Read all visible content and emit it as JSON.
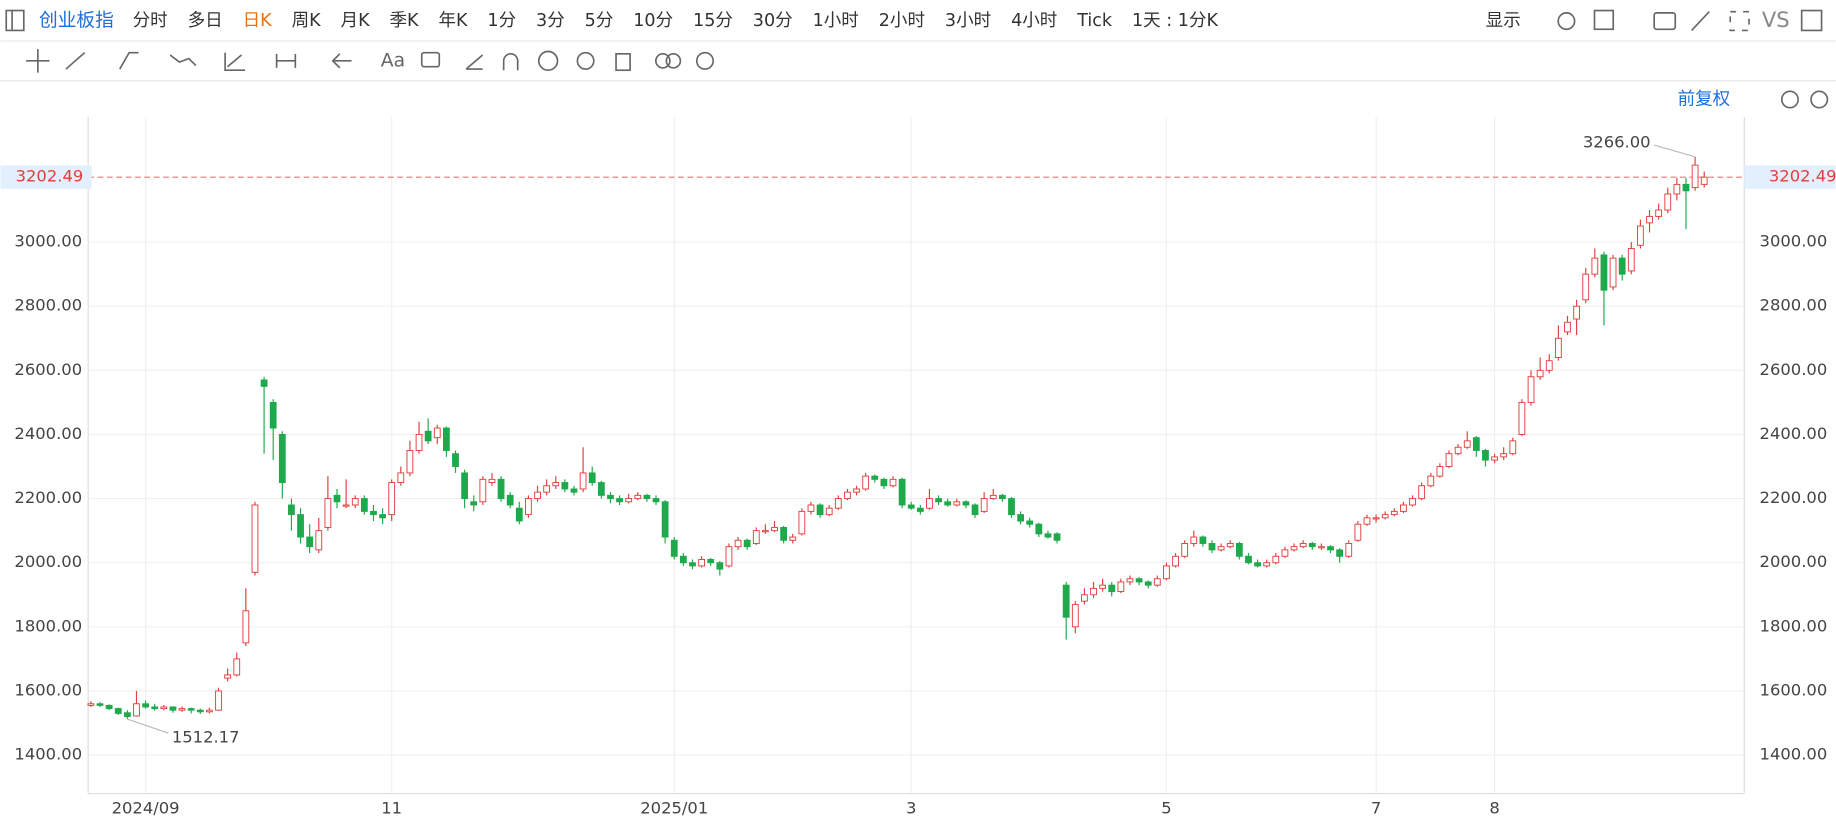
{
  "toolbar": {
    "title": "创业板指",
    "periods": [
      "分时",
      "多日",
      "日K",
      "周K",
      "月K",
      "季K",
      "年K",
      "1分",
      "3分",
      "5分",
      "10分",
      "15分",
      "30分",
      "1小时",
      "2小时",
      "3小时",
      "4小时",
      "Tick",
      "1天 : 1分K"
    ],
    "active_period": "日K",
    "display": "显示",
    "compare": "VS",
    "text_tool": "Aa",
    "adjust": "前复权"
  },
  "chart_data": {
    "type": "candlestick",
    "up_color": "#e0403c",
    "down_color": "#1ea94c",
    "candles": [
      [
        1555,
        1568,
        1550,
        1560
      ],
      [
        1560,
        1565,
        1550,
        1555
      ],
      [
        1555,
        1558,
        1540,
        1545
      ],
      [
        1545,
        1548,
        1525,
        1530
      ],
      [
        1532,
        1540,
        1512.17,
        1520
      ],
      [
        1522,
        1600,
        1520,
        1560
      ],
      [
        1560,
        1570,
        1545,
        1550
      ],
      [
        1550,
        1560,
        1538,
        1545
      ],
      [
        1545,
        1556,
        1540,
        1550
      ],
      [
        1550,
        1552,
        1532,
        1540
      ],
      [
        1540,
        1552,
        1535,
        1545
      ],
      [
        1545,
        1548,
        1530,
        1540
      ],
      [
        1540,
        1545,
        1528,
        1535
      ],
      [
        1535,
        1548,
        1530,
        1540
      ],
      [
        1540,
        1610,
        1538,
        1600
      ],
      [
        1640,
        1670,
        1630,
        1650
      ],
      [
        1650,
        1720,
        1645,
        1700
      ],
      [
        1750,
        1920,
        1740,
        1850
      ],
      [
        1970,
        2190,
        1960,
        2180
      ],
      [
        2570,
        2580,
        2340,
        2550
      ],
      [
        2500,
        2510,
        2320,
        2420
      ],
      [
        2400,
        2410,
        2200,
        2250
      ],
      [
        2180,
        2200,
        2100,
        2150
      ],
      [
        2150,
        2170,
        2060,
        2080
      ],
      [
        2080,
        2120,
        2030,
        2050
      ],
      [
        2040,
        2140,
        2030,
        2100
      ],
      [
        2110,
        2270,
        2100,
        2200
      ],
      [
        2210,
        2230,
        2170,
        2190
      ],
      [
        2180,
        2260,
        2170,
        2180
      ],
      [
        2180,
        2210,
        2170,
        2200
      ],
      [
        2200,
        2210,
        2150,
        2160
      ],
      [
        2160,
        2180,
        2130,
        2150
      ],
      [
        2150,
        2170,
        2120,
        2140
      ],
      [
        2150,
        2260,
        2130,
        2250
      ],
      [
        2250,
        2300,
        2240,
        2280
      ],
      [
        2280,
        2380,
        2270,
        2350
      ],
      [
        2350,
        2440,
        2340,
        2400
      ],
      [
        2410,
        2450,
        2370,
        2380
      ],
      [
        2390,
        2430,
        2370,
        2420
      ],
      [
        2420,
        2425,
        2330,
        2350
      ],
      [
        2340,
        2350,
        2280,
        2300
      ],
      [
        2280,
        2290,
        2170,
        2200
      ],
      [
        2190,
        2210,
        2160,
        2180
      ],
      [
        2190,
        2270,
        2180,
        2260
      ],
      [
        2250,
        2280,
        2240,
        2260
      ],
      [
        2260,
        2270,
        2190,
        2200
      ],
      [
        2210,
        2220,
        2170,
        2180
      ],
      [
        2170,
        2190,
        2120,
        2130
      ],
      [
        2150,
        2210,
        2140,
        2200
      ],
      [
        2200,
        2240,
        2190,
        2220
      ],
      [
        2220,
        2260,
        2210,
        2240
      ],
      [
        2240,
        2270,
        2230,
        2250
      ],
      [
        2250,
        2260,
        2220,
        2230
      ],
      [
        2230,
        2240,
        2210,
        2220
      ],
      [
        2230,
        2360,
        2220,
        2280
      ],
      [
        2280,
        2300,
        2240,
        2250
      ],
      [
        2250,
        2255,
        2200,
        2210
      ],
      [
        2210,
        2220,
        2185,
        2200
      ],
      [
        2200,
        2210,
        2180,
        2190
      ],
      [
        2190,
        2215,
        2185,
        2200
      ],
      [
        2200,
        2220,
        2195,
        2210
      ],
      [
        2210,
        2215,
        2190,
        2200
      ],
      [
        2200,
        2210,
        2180,
        2190
      ],
      [
        2190,
        2195,
        2060,
        2080
      ],
      [
        2070,
        2080,
        2010,
        2020
      ],
      [
        2020,
        2030,
        1990,
        2000
      ],
      [
        2000,
        2010,
        1980,
        1990
      ],
      [
        1990,
        2020,
        1985,
        2010
      ],
      [
        2010,
        2015,
        1990,
        2000
      ],
      [
        2000,
        2005,
        1960,
        1980
      ],
      [
        1990,
        2060,
        1985,
        2050
      ],
      [
        2050,
        2080,
        2040,
        2070
      ],
      [
        2070,
        2075,
        2040,
        2050
      ],
      [
        2060,
        2110,
        2055,
        2100
      ],
      [
        2100,
        2120,
        2090,
        2100
      ],
      [
        2100,
        2130,
        2095,
        2110
      ],
      [
        2110,
        2115,
        2060,
        2070
      ],
      [
        2070,
        2090,
        2060,
        2080
      ],
      [
        2090,
        2170,
        2085,
        2160
      ],
      [
        2160,
        2190,
        2150,
        2180
      ],
      [
        2180,
        2185,
        2140,
        2150
      ],
      [
        2150,
        2180,
        2145,
        2170
      ],
      [
        2170,
        2210,
        2165,
        2200
      ],
      [
        2200,
        2230,
        2195,
        2220
      ],
      [
        2220,
        2240,
        2210,
        2230
      ],
      [
        2230,
        2280,
        2225,
        2270
      ],
      [
        2270,
        2275,
        2250,
        2260
      ],
      [
        2260,
        2265,
        2230,
        2240
      ],
      [
        2240,
        2270,
        2235,
        2260
      ],
      [
        2260,
        2265,
        2170,
        2180
      ],
      [
        2180,
        2190,
        2165,
        2170
      ],
      [
        2170,
        2180,
        2150,
        2160
      ],
      [
        2170,
        2230,
        2165,
        2200
      ],
      [
        2200,
        2210,
        2180,
        2190
      ],
      [
        2190,
        2200,
        2175,
        2180
      ],
      [
        2180,
        2200,
        2175,
        2190
      ],
      [
        2190,
        2195,
        2170,
        2180
      ],
      [
        2180,
        2185,
        2140,
        2150
      ],
      [
        2160,
        2220,
        2155,
        2200
      ],
      [
        2200,
        2230,
        2195,
        2210
      ],
      [
        2210,
        2215,
        2190,
        2200
      ],
      [
        2200,
        2205,
        2140,
        2150
      ],
      [
        2150,
        2160,
        2120,
        2130
      ],
      [
        2130,
        2140,
        2110,
        2120
      ],
      [
        2120,
        2125,
        2080,
        2090
      ],
      [
        2090,
        2100,
        2075,
        2080
      ],
      [
        2090,
        2095,
        2060,
        2070
      ],
      [
        1930,
        1940,
        1760,
        1830
      ],
      [
        1800,
        1880,
        1780,
        1870
      ],
      [
        1880,
        1920,
        1870,
        1900
      ],
      [
        1900,
        1940,
        1890,
        1920
      ],
      [
        1920,
        1950,
        1910,
        1930
      ],
      [
        1930,
        1940,
        1895,
        1910
      ],
      [
        1910,
        1950,
        1905,
        1940
      ],
      [
        1940,
        1960,
        1930,
        1950
      ],
      [
        1950,
        1955,
        1930,
        1940
      ],
      [
        1940,
        1945,
        1920,
        1930
      ],
      [
        1930,
        1960,
        1925,
        1950
      ],
      [
        1950,
        2000,
        1945,
        1990
      ],
      [
        1990,
        2030,
        1985,
        2020
      ],
      [
        2020,
        2070,
        2015,
        2060
      ],
      [
        2060,
        2100,
        2050,
        2080
      ],
      [
        2080,
        2085,
        2050,
        2060
      ],
      [
        2060,
        2070,
        2030,
        2040
      ],
      [
        2040,
        2060,
        2035,
        2050
      ],
      [
        2050,
        2070,
        2045,
        2060
      ],
      [
        2060,
        2065,
        2010,
        2020
      ],
      [
        2020,
        2030,
        1995,
        2000
      ],
      [
        2000,
        2010,
        1985,
        1990
      ],
      [
        1990,
        2010,
        1985,
        2000
      ],
      [
        2000,
        2030,
        1995,
        2020
      ],
      [
        2020,
        2050,
        2015,
        2040
      ],
      [
        2040,
        2060,
        2035,
        2050
      ],
      [
        2050,
        2070,
        2045,
        2060
      ],
      [
        2060,
        2065,
        2040,
        2050
      ],
      [
        2050,
        2060,
        2040,
        2050
      ],
      [
        2050,
        2055,
        2030,
        2040
      ],
      [
        2040,
        2045,
        2000,
        2020
      ],
      [
        2020,
        2070,
        2015,
        2060
      ],
      [
        2070,
        2130,
        2065,
        2120
      ],
      [
        2120,
        2150,
        2115,
        2140
      ],
      [
        2140,
        2150,
        2125,
        2140
      ],
      [
        2140,
        2160,
        2135,
        2150
      ],
      [
        2150,
        2170,
        2145,
        2160
      ],
      [
        2160,
        2190,
        2155,
        2180
      ],
      [
        2180,
        2210,
        2175,
        2200
      ],
      [
        2200,
        2250,
        2195,
        2240
      ],
      [
        2240,
        2280,
        2235,
        2270
      ],
      [
        2270,
        2310,
        2265,
        2300
      ],
      [
        2300,
        2350,
        2295,
        2340
      ],
      [
        2340,
        2370,
        2335,
        2360
      ],
      [
        2360,
        2410,
        2355,
        2380
      ],
      [
        2390,
        2395,
        2330,
        2350
      ],
      [
        2350,
        2355,
        2300,
        2320
      ],
      [
        2320,
        2340,
        2310,
        2330
      ],
      [
        2330,
        2360,
        2320,
        2340
      ],
      [
        2340,
        2390,
        2335,
        2380
      ],
      [
        2400,
        2510,
        2395,
        2500
      ],
      [
        2500,
        2600,
        2490,
        2580
      ],
      [
        2580,
        2640,
        2570,
        2600
      ],
      [
        2600,
        2650,
        2590,
        2630
      ],
      [
        2640,
        2740,
        2630,
        2700
      ],
      [
        2720,
        2770,
        2710,
        2750
      ],
      [
        2760,
        2820,
        2710,
        2800
      ],
      [
        2820,
        2920,
        2810,
        2900
      ],
      [
        2900,
        2980,
        2890,
        2950
      ],
      [
        2960,
        2970,
        2740,
        2850
      ],
      [
        2860,
        2960,
        2850,
        2950
      ],
      [
        2950,
        2960,
        2880,
        2900
      ],
      [
        2910,
        3000,
        2900,
        2980
      ],
      [
        2990,
        3070,
        2980,
        3050
      ],
      [
        3060,
        3100,
        3030,
        3080
      ],
      [
        3080,
        3120,
        3070,
        3100
      ],
      [
        3100,
        3170,
        3090,
        3150
      ],
      [
        3150,
        3200,
        3130,
        3180
      ],
      [
        3180,
        3200,
        3040,
        3160
      ],
      [
        3170,
        3266,
        3160,
        3240
      ],
      [
        3180,
        3220,
        3170,
        3202.49
      ]
    ],
    "xlim": [
      -0.3,
      181.4
    ],
    "xticks": [
      {
        "value": 6,
        "label": "2024/09"
      },
      {
        "value": 33,
        "label": "11"
      },
      {
        "value": 64,
        "label": "2025/01"
      },
      {
        "value": 90,
        "label": "3"
      },
      {
        "value": 118,
        "label": "5"
      },
      {
        "value": 141,
        "label": "7"
      },
      {
        "value": 154,
        "label": "8"
      }
    ],
    "ylim": [
      1280,
      3390
    ],
    "yticks": [
      {
        "value": 1400,
        "label": "1400.00"
      },
      {
        "value": 1600,
        "label": "1600.00"
      },
      {
        "value": 1800,
        "label": "1800.00"
      },
      {
        "value": 2000,
        "label": "2000.00"
      },
      {
        "value": 2200,
        "label": "2200.00"
      },
      {
        "value": 2400,
        "label": "2400.00"
      },
      {
        "value": 2600,
        "label": "2600.00"
      },
      {
        "value": 2800,
        "label": "2800.00"
      },
      {
        "value": 3000,
        "label": "3000.00"
      }
    ],
    "grid": true,
    "last_price": {
      "value": 3202.49,
      "label": "3202.49"
    },
    "annotations": [
      {
        "text": "3266.00",
        "value": 3266
      },
      {
        "text": "1512.17",
        "value": 1512.17
      }
    ]
  }
}
